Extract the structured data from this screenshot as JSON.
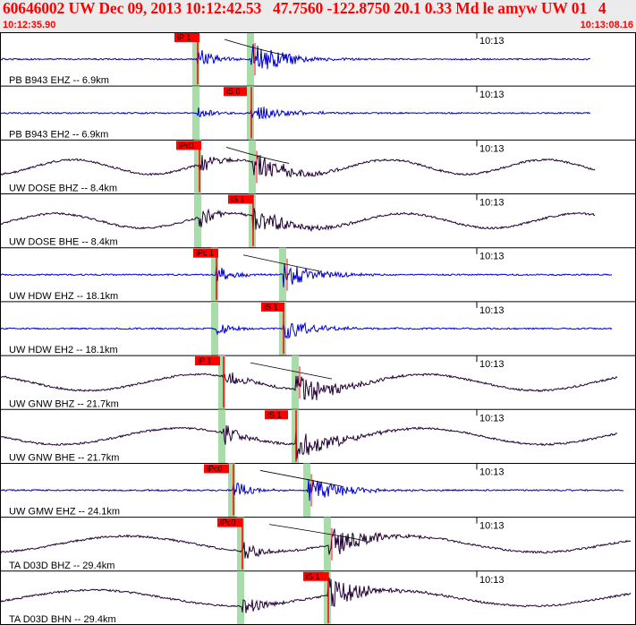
{
  "header": {
    "title": "60646002 UW Dec 09, 2013 10:12:42.53   47.7560 -122.8750 20.1 0.33 Md le amyw UW 01   4",
    "start_time": "10:12:35.90",
    "end_time": "10:13:08.16",
    "background": "#ebebeb",
    "text_color": "#ff0000"
  },
  "chart_data": {
    "type": "line",
    "title": "60646002 UW Dec 09, 2013 10:12:42.53   47.7560 -122.8750 20.1 0.33 Md le amyw UW 01   4",
    "xlim": [
      "10:12:35.90",
      "10:13:08.16"
    ],
    "time_tick_label": "10:13",
    "colors": {
      "short_period": "#0000cc",
      "broadband": "#220033",
      "pick_marker": "#ff0000",
      "pick_window": "#a8dca8",
      "frame": "#000000"
    },
    "traces": [
      {
        "label": "PB B943 EHZ -- 6.9km",
        "color": "#0000cc",
        "p_pick": "iP 1",
        "s_pick": ""
      },
      {
        "label": "PB B943 EH2 -- 6.9km",
        "color": "#0000cc",
        "p_pick": "",
        "s_pick": "iS 0"
      },
      {
        "label": "UW DOSE BHZ -- 8.4km",
        "color": "#220033",
        "p_pick": "iPd1",
        "s_pick": ""
      },
      {
        "label": "UW DOSE BHE -- 8.4km",
        "color": "#220033",
        "p_pick": "",
        "s_pick": "iS 1"
      },
      {
        "label": "UW HDW EHZ -- 18.1km",
        "color": "#0000cc",
        "p_pick": "iPc 1",
        "s_pick": ""
      },
      {
        "label": "UW HDW EH2 -- 18.1km",
        "color": "#0000cc",
        "p_pick": "",
        "s_pick": "iS 1"
      },
      {
        "label": "UW GNW BHZ -- 21.7km",
        "color": "#220033",
        "p_pick": "iP 1",
        "s_pick": ""
      },
      {
        "label": "UW GNW BHE -- 21.7km",
        "color": "#220033",
        "p_pick": "",
        "s_pick": "iS 1"
      },
      {
        "label": "UW GMW EHZ -- 24.1km",
        "color": "#0000cc",
        "p_pick": "iPc0",
        "s_pick": ""
      },
      {
        "label": "TA D03D BHZ -- 29.4km",
        "color": "#220033",
        "p_pick": "iPc0",
        "s_pick": ""
      },
      {
        "label": "TA D03D BHN -- 29.4km",
        "color": "#220033",
        "p_pick": "",
        "s_pick": "iS 1"
      }
    ]
  }
}
